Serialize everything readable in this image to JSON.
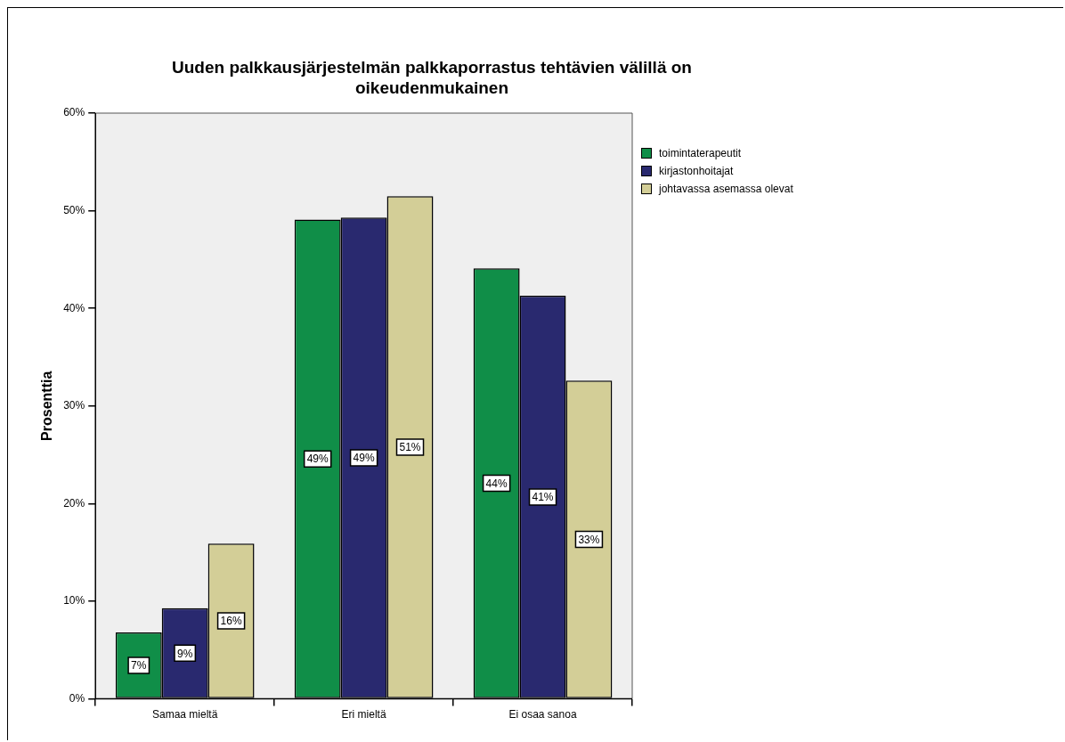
{
  "chart_data": {
    "type": "bar",
    "title": "Uuden palkkausjärjestelmän palkkaporrastus tehtävien välillä on oikeudenmukainen",
    "ylabel": "Prosenttia",
    "categories": [
      "Samaa mieltä",
      "Eri mieltä",
      "Ei osaa sanoa"
    ],
    "series": [
      {
        "name": "toimintaterapeutit",
        "color": "#108e48",
        "values": [
          6.8,
          49.1,
          44.1
        ],
        "value_labels": [
          "7%",
          "49%",
          "44%"
        ]
      },
      {
        "name": "kirjastonhoitajat",
        "color": "#29296f",
        "values": [
          9.3,
          49.3,
          41.3
        ],
        "value_labels": [
          "9%",
          "49%",
          "41%"
        ]
      },
      {
        "name": "johtavassa asemassa olevat",
        "color": "#d3ce97",
        "values": [
          15.9,
          51.5,
          32.6
        ],
        "value_labels": [
          "16%",
          "51%",
          "33%"
        ]
      }
    ],
    "ylim": [
      0,
      60
    ],
    "yticks": [
      {
        "value": 0,
        "label": "0%"
      },
      {
        "value": 10,
        "label": "10%"
      },
      {
        "value": 20,
        "label": "20%"
      },
      {
        "value": 30,
        "label": "30%"
      },
      {
        "value": 40,
        "label": "40%"
      },
      {
        "value": 50,
        "label": "50%"
      },
      {
        "value": 60,
        "label": "60%"
      }
    ],
    "grid": false,
    "legend": "top right"
  }
}
